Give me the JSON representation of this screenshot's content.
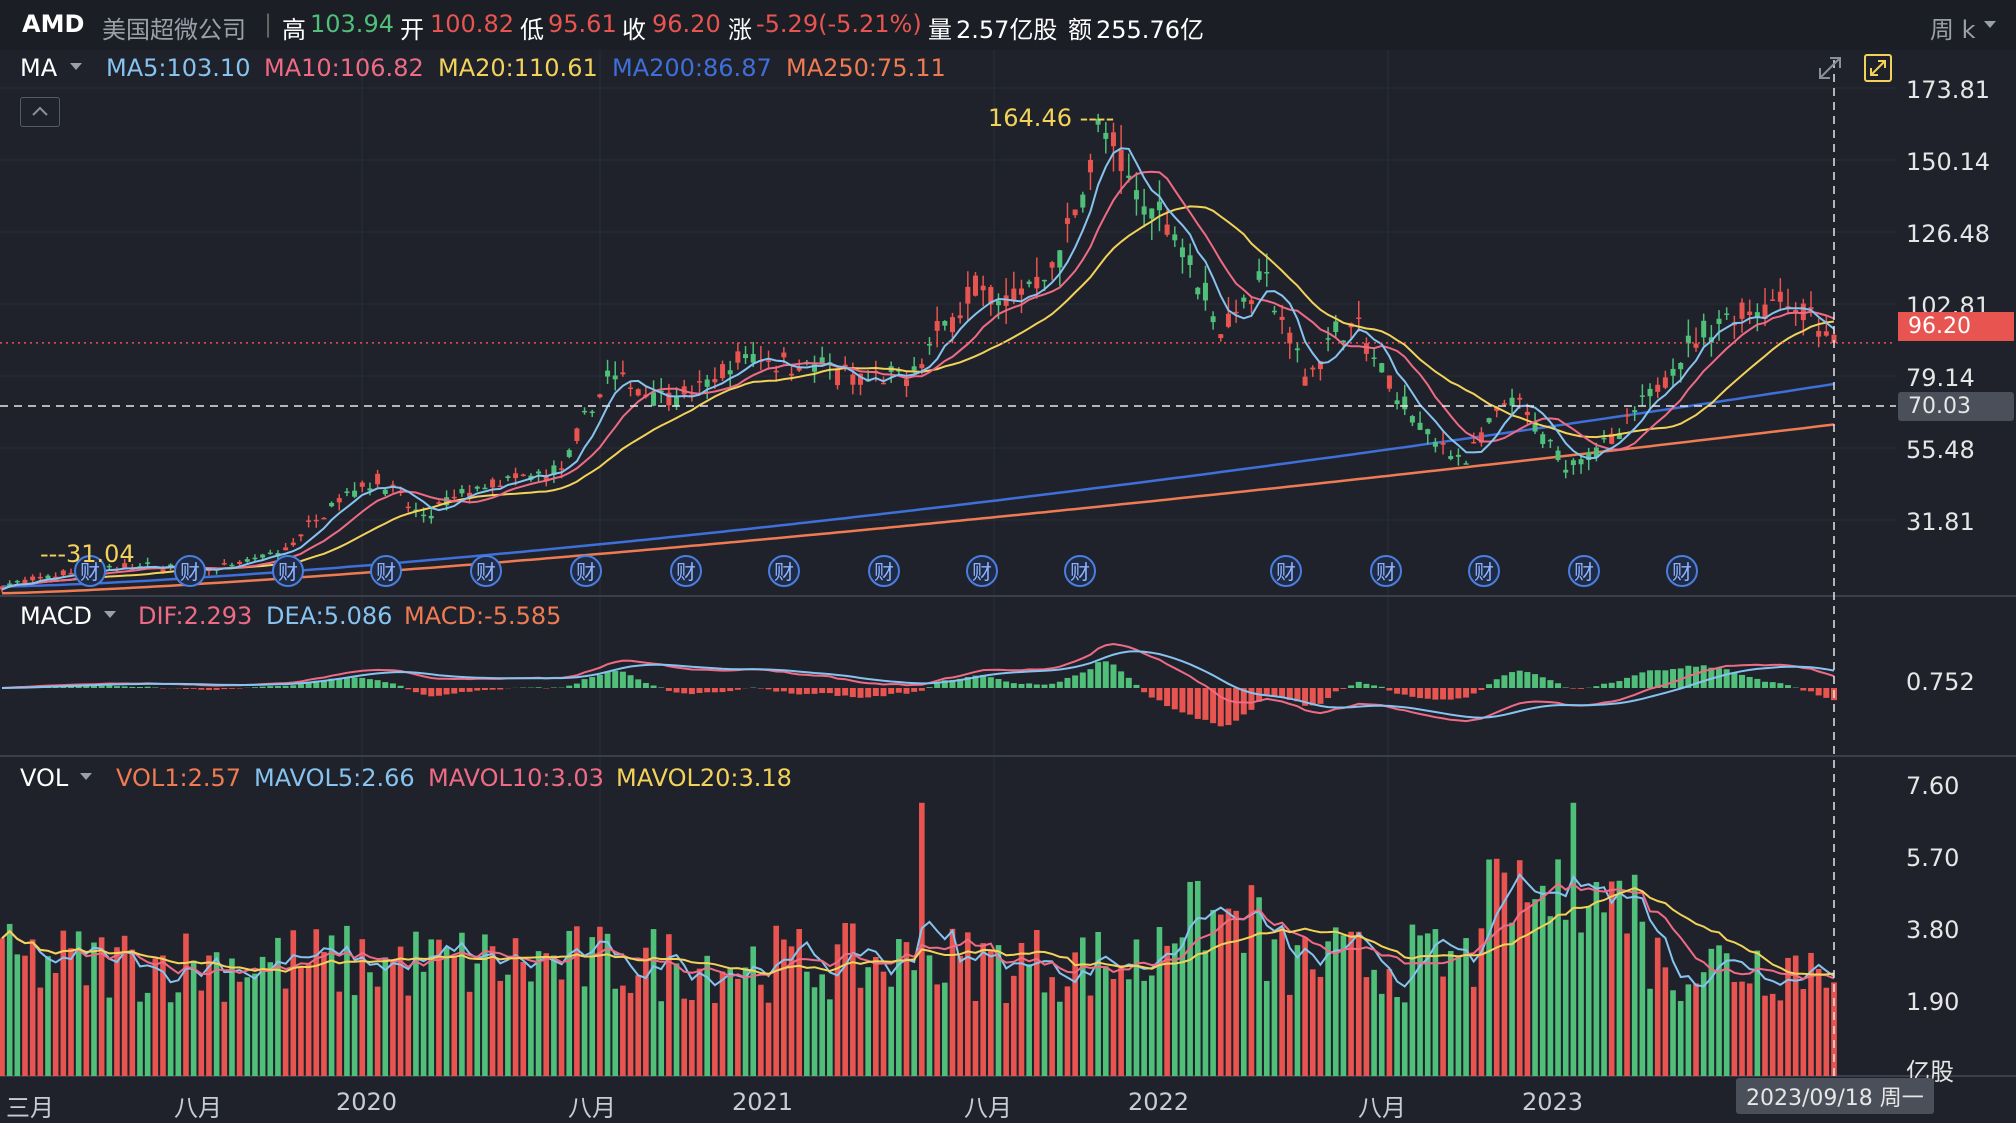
{
  "header": {
    "symbol": "AMD",
    "name": "美国超微公司",
    "high_label": "高",
    "high": "103.94",
    "open_label": "开",
    "open": "100.82",
    "low_label": "低",
    "low": "95.61",
    "close_label": "收",
    "close": "96.20",
    "change_label": "涨",
    "change": "-5.29(-5.21%)",
    "volume_label": "量",
    "volume": "2.57亿股",
    "amount_label": "额",
    "amount": "255.76亿",
    "period": "周 k"
  },
  "ma_legend": {
    "name": "MA",
    "ma5": "MA5:103.10",
    "ma10": "MA10:106.82",
    "ma20": "MA20:110.61",
    "ma200": "MA200:86.87",
    "ma250": "MA250:75.11"
  },
  "macd_legend": {
    "name": "MACD",
    "dif": "DIF:2.293",
    "dea": "DEA:5.086",
    "macd": "MACD:-5.585"
  },
  "vol_legend": {
    "name": "VOL",
    "vol1": "VOL1:2.57",
    "mavol5": "MAVOL5:2.66",
    "mavol10": "MAVOL10:3.03",
    "mavol20": "MAVOL20:3.18"
  },
  "price_axis": [
    "173.81",
    "150.14",
    "126.48",
    "102.81",
    "79.14",
    "55.48",
    "31.81"
  ],
  "macd_axis": [
    "0.752"
  ],
  "vol_axis": [
    "7.60",
    "5.70",
    "3.80",
    "1.90"
  ],
  "vol_unit": "亿股",
  "time_axis": [
    "三月",
    "八月",
    "2020",
    "八月",
    "2021",
    "八月",
    "2022",
    "八月",
    "2023"
  ],
  "current_price_tag": "96.20",
  "crosshair_price_tag": "70.03",
  "crosshair_date": "2023/09/18 周一",
  "peak_label": "164.46 ----",
  "low_label_text": "---31.04",
  "earnings_marker": "财",
  "earnings_count": 16,
  "colors": {
    "up": "#4fbf7a",
    "down": "#e8544f",
    "ma5": "#86c3f0",
    "ma10": "#ef6b85",
    "ma20": "#f3d25a",
    "ma200": "#3f6fd8",
    "ma250": "#ef7b52",
    "background": "#1f222a",
    "header_bg": "#1b1e25"
  },
  "chart_data": {
    "type": "candlestick",
    "title": "AMD 周 k",
    "price_range": [
      20,
      180
    ],
    "peak": 164.46,
    "current": 96.2,
    "crosshair": 70.03
  }
}
